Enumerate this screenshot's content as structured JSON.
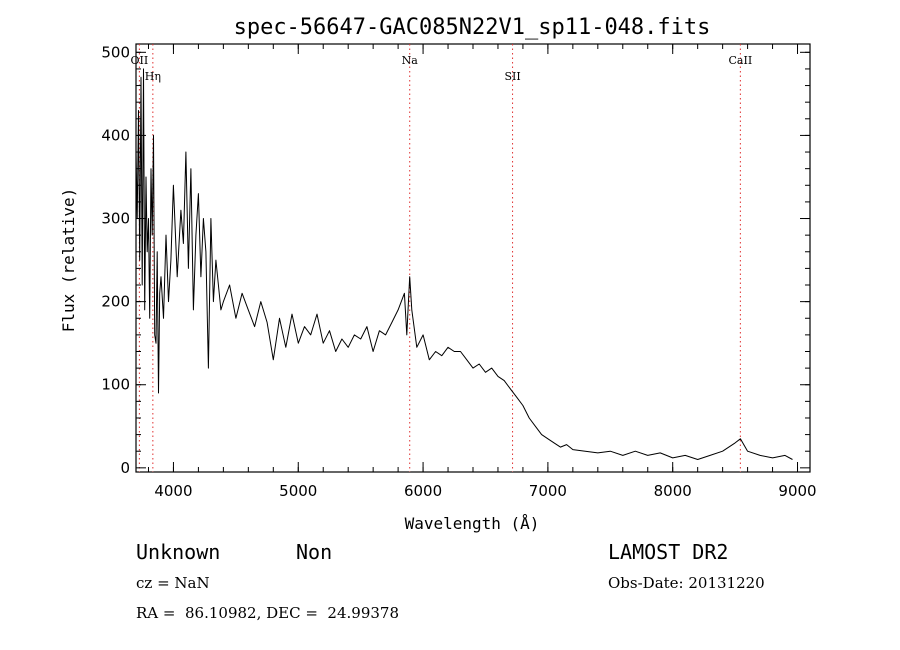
{
  "chart_data": {
    "type": "line",
    "title": "spec-56647-GAC085N22V1_sp11-048.fits",
    "xlabel": "Wavelength (Å)",
    "ylabel": "Flux (relative)",
    "xlim": [
      3700,
      9100
    ],
    "ylim": [
      -5,
      510
    ],
    "x_ticks": [
      4000,
      5000,
      6000,
      7000,
      8000,
      9000
    ],
    "y_ticks": [
      0,
      100,
      200,
      300,
      400,
      500
    ],
    "line_color": "#000000",
    "marker_color": "#e03030",
    "spectral_lines": [
      {
        "label": "OII",
        "x": 3727
      },
      {
        "label": "Hη",
        "x": 3835
      },
      {
        "label": "Na",
        "x": 5893
      },
      {
        "label": "SII",
        "x": 6717
      },
      {
        "label": "CaII",
        "x": 8542
      }
    ],
    "series": [
      {
        "values": [
          [
            3700,
            380
          ],
          [
            3710,
            300
          ],
          [
            3720,
            430
          ],
          [
            3730,
            250
          ],
          [
            3740,
            470
          ],
          [
            3750,
            220
          ],
          [
            3760,
            480
          ],
          [
            3770,
            190
          ],
          [
            3780,
            350
          ],
          [
            3790,
            260
          ],
          [
            3800,
            300
          ],
          [
            3810,
            180
          ],
          [
            3820,
            360
          ],
          [
            3830,
            280
          ],
          [
            3840,
            400
          ],
          [
            3850,
            160
          ],
          [
            3860,
            150
          ],
          [
            3870,
            260
          ],
          [
            3880,
            90
          ],
          [
            3890,
            210
          ],
          [
            3900,
            230
          ],
          [
            3920,
            180
          ],
          [
            3940,
            280
          ],
          [
            3960,
            200
          ],
          [
            3980,
            250
          ],
          [
            4000,
            340
          ],
          [
            4030,
            230
          ],
          [
            4060,
            310
          ],
          [
            4080,
            270
          ],
          [
            4100,
            380
          ],
          [
            4120,
            240
          ],
          [
            4140,
            360
          ],
          [
            4160,
            190
          ],
          [
            4180,
            280
          ],
          [
            4200,
            330
          ],
          [
            4220,
            230
          ],
          [
            4240,
            300
          ],
          [
            4260,
            260
          ],
          [
            4280,
            120
          ],
          [
            4300,
            300
          ],
          [
            4320,
            200
          ],
          [
            4340,
            250
          ],
          [
            4360,
            220
          ],
          [
            4380,
            190
          ],
          [
            4400,
            200
          ],
          [
            4450,
            220
          ],
          [
            4500,
            180
          ],
          [
            4550,
            210
          ],
          [
            4600,
            190
          ],
          [
            4650,
            170
          ],
          [
            4700,
            200
          ],
          [
            4750,
            175
          ],
          [
            4800,
            130
          ],
          [
            4850,
            180
          ],
          [
            4900,
            145
          ],
          [
            4950,
            185
          ],
          [
            5000,
            150
          ],
          [
            5050,
            170
          ],
          [
            5100,
            160
          ],
          [
            5150,
            185
          ],
          [
            5200,
            150
          ],
          [
            5250,
            165
          ],
          [
            5300,
            140
          ],
          [
            5350,
            155
          ],
          [
            5400,
            145
          ],
          [
            5450,
            160
          ],
          [
            5500,
            155
          ],
          [
            5550,
            170
          ],
          [
            5600,
            140
          ],
          [
            5650,
            165
          ],
          [
            5700,
            160
          ],
          [
            5750,
            175
          ],
          [
            5800,
            190
          ],
          [
            5850,
            210
          ],
          [
            5870,
            160
          ],
          [
            5893,
            230
          ],
          [
            5910,
            190
          ],
          [
            5950,
            145
          ],
          [
            6000,
            160
          ],
          [
            6050,
            130
          ],
          [
            6100,
            140
          ],
          [
            6150,
            135
          ],
          [
            6200,
            145
          ],
          [
            6250,
            140
          ],
          [
            6300,
            140
          ],
          [
            6350,
            130
          ],
          [
            6400,
            120
          ],
          [
            6450,
            125
          ],
          [
            6500,
            115
          ],
          [
            6550,
            120
          ],
          [
            6600,
            110
          ],
          [
            6650,
            105
          ],
          [
            6700,
            95
          ],
          [
            6750,
            85
          ],
          [
            6800,
            75
          ],
          [
            6850,
            60
          ],
          [
            6900,
            50
          ],
          [
            6950,
            40
          ],
          [
            7000,
            35
          ],
          [
            7050,
            30
          ],
          [
            7100,
            25
          ],
          [
            7150,
            28
          ],
          [
            7200,
            22
          ],
          [
            7300,
            20
          ],
          [
            7400,
            18
          ],
          [
            7500,
            20
          ],
          [
            7600,
            15
          ],
          [
            7700,
            20
          ],
          [
            7800,
            15
          ],
          [
            7900,
            18
          ],
          [
            8000,
            12
          ],
          [
            8100,
            15
          ],
          [
            8200,
            10
          ],
          [
            8300,
            15
          ],
          [
            8400,
            20
          ],
          [
            8500,
            30
          ],
          [
            8542,
            35
          ],
          [
            8600,
            20
          ],
          [
            8700,
            15
          ],
          [
            8800,
            12
          ],
          [
            8900,
            15
          ],
          [
            8960,
            10
          ]
        ]
      }
    ]
  },
  "info": {
    "class": "Unknown",
    "subclass": "Non",
    "survey": "LAMOST DR2",
    "cz": "cz = NaN",
    "obs_date": "Obs-Date: 20131220",
    "coords": "RA =  86.10982, DEC =  24.99378"
  }
}
